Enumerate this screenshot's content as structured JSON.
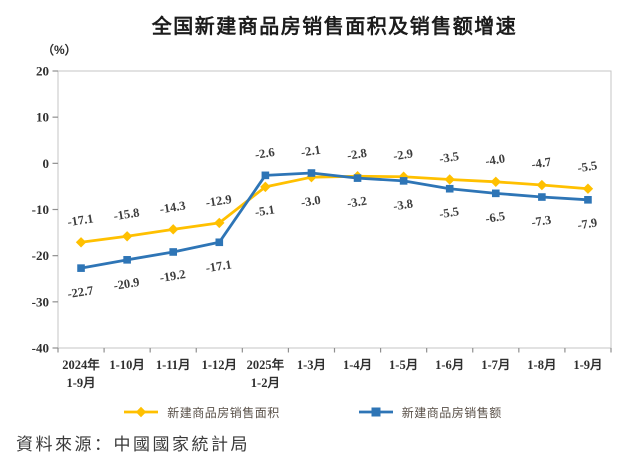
{
  "title": "全国新建商品房销售面积及销售额增速",
  "unit_label": "（%）",
  "source_note": "資料來源：中國國家統計局",
  "chart_data": {
    "type": "line",
    "title": "全国新建商品房销售面积及销售额增速",
    "ylabel": "（%）",
    "xlabel": "",
    "grid": false,
    "legend_position": "bottom",
    "ylim": [
      -40,
      20
    ],
    "yticks": [
      20,
      10,
      0,
      -10,
      -20,
      -30,
      -40
    ],
    "categories": [
      [
        "2024年",
        "1-9月"
      ],
      [
        "1-10月"
      ],
      [
        "1-11月"
      ],
      [
        "1-12月"
      ],
      [
        "2025年",
        "1-2月"
      ],
      [
        "1-3月"
      ],
      [
        "1-4月"
      ],
      [
        "1-5月"
      ],
      [
        "1-6月"
      ],
      [
        "1-7月"
      ],
      [
        "1-8月"
      ],
      [
        "1-9月"
      ]
    ],
    "series": [
      {
        "name": "新建商品房销售面积",
        "marker": "diamond",
        "color": "#FFC000",
        "values": [
          -17.1,
          -15.8,
          -14.3,
          -12.9,
          -5.1,
          -3.0,
          -2.8,
          -2.9,
          -3.5,
          -4.0,
          -4.7,
          -5.5
        ]
      },
      {
        "name": "新建商品房销售额",
        "marker": "square",
        "color": "#2E75B6",
        "values": [
          -22.7,
          -20.9,
          -19.2,
          -17.1,
          -2.6,
          -2.1,
          -3.2,
          -3.8,
          -5.5,
          -6.5,
          -7.3,
          -7.9
        ]
      }
    ],
    "label_color": "#3d3d3d",
    "axis_color": "#8f8f8f",
    "border_color": "#c6c6c6",
    "source": "資料來源：中國國家統計局"
  }
}
